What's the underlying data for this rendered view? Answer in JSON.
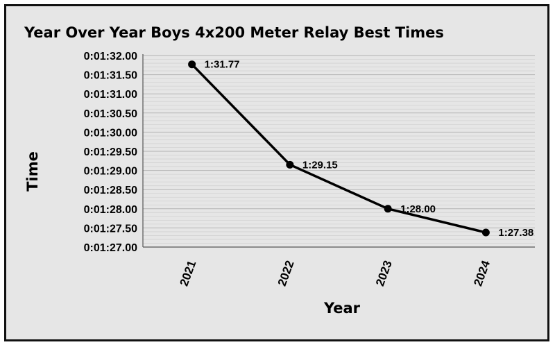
{
  "chart_data": {
    "type": "line",
    "title": "Year Over Year Boys 4x200 Meter Relay Best Times",
    "xlabel": "Year",
    "ylabel": "Time",
    "categories": [
      "2021",
      "2022",
      "2023",
      "2024"
    ],
    "series": [
      {
        "values": [
          91.77,
          89.15,
          88.0,
          87.38
        ],
        "data_labels": [
          "1:31.77",
          "1:29.15",
          "1:28.00",
          "1:27.38"
        ]
      }
    ],
    "ylim": [
      87.0,
      92.0
    ],
    "y_ticks": [
      {
        "value": 92.0,
        "label": "0:01:32.00"
      },
      {
        "value": 91.5,
        "label": "0:01:31.50"
      },
      {
        "value": 91.0,
        "label": "0:01:31.00"
      },
      {
        "value": 90.5,
        "label": "0:01:30.50"
      },
      {
        "value": 90.0,
        "label": "0:01:30.00"
      },
      {
        "value": 89.5,
        "label": "0:01:29.50"
      },
      {
        "value": 89.0,
        "label": "0:01:29.00"
      },
      {
        "value": 88.5,
        "label": "0:01:28.50"
      },
      {
        "value": 88.0,
        "label": "0:01:28.00"
      },
      {
        "value": 87.5,
        "label": "0:01:27.50"
      },
      {
        "value": 87.0,
        "label": "0:01:27.00"
      }
    ],
    "grid": true,
    "colors": {
      "line": "#000000",
      "background": "#e6e6e6",
      "grid": "#bfbfbf"
    }
  }
}
